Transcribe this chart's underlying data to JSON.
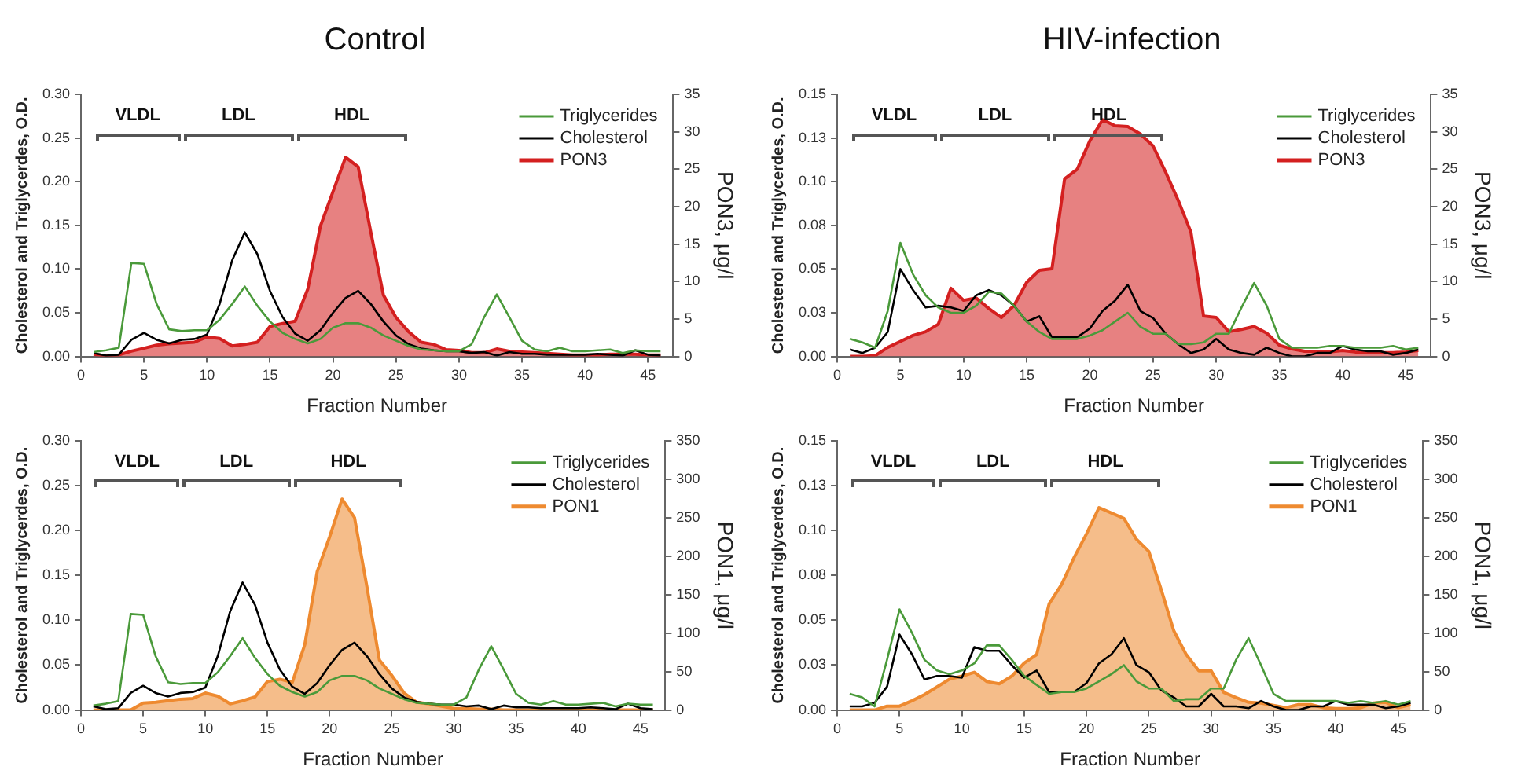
{
  "chart_data": [
    {
      "type": "line",
      "title": "Control",
      "xlabel": "Fraction Number",
      "ylabel": "Cholesterol and Triglycerdes, O.D.",
      "y2label": "PON3, μg/l",
      "legend": "top right",
      "grid": false,
      "marker": "none",
      "line_style": "solid",
      "x": [
        1,
        2,
        3,
        4,
        5,
        6,
        7,
        8,
        9,
        10,
        11,
        12,
        13,
        14,
        15,
        16,
        17,
        18,
        19,
        20,
        21,
        22,
        23,
        24,
        25,
        26,
        27,
        28,
        29,
        30,
        31,
        32,
        33,
        34,
        35,
        36,
        37,
        38,
        39,
        40,
        41,
        42,
        43,
        44,
        45,
        46
      ],
      "xlim": [
        0,
        47
      ],
      "xticks": [
        0,
        5,
        10,
        15,
        20,
        25,
        30,
        35,
        40,
        45
      ],
      "ylim": [
        0,
        0.3
      ],
      "yticks": [
        {
          "value": 0,
          "label": "0.00"
        },
        {
          "value": 0.05,
          "label": "0.05"
        },
        {
          "value": 0.1,
          "label": "0.10"
        },
        {
          "value": 0.15,
          "label": "0.15"
        },
        {
          "value": 0.2,
          "label": "0.20"
        },
        {
          "value": 0.25,
          "label": "0.25"
        },
        {
          "value": 0.3,
          "label": "0.30"
        }
      ],
      "y2lim": [
        0,
        35
      ],
      "y2ticks": [
        0,
        5,
        10,
        15,
        20,
        25,
        30,
        35
      ],
      "annotations": [
        "VLDL",
        "LDL",
        "HDL"
      ],
      "series": [
        {
          "name": "Triglycerides",
          "color": "#4a9a3a",
          "type": "line",
          "values": [
            0.005,
            0.007,
            0.01,
            0.107,
            0.106,
            0.06,
            0.031,
            0.029,
            0.03,
            0.03,
            0.042,
            0.06,
            0.08,
            0.058,
            0.04,
            0.027,
            0.02,
            0.015,
            0.02,
            0.033,
            0.038,
            0.038,
            0.033,
            0.024,
            0.018,
            0.012,
            0.008,
            0.007,
            0.006,
            0.006,
            0.014,
            0.045,
            0.071,
            0.045,
            0.018,
            0.008,
            0.006,
            0.01,
            0.006,
            0.006,
            0.007,
            0.008,
            0.004,
            0.007,
            0.006,
            0.006
          ]
        },
        {
          "name": "Cholesterol",
          "color": "#000000",
          "type": "line",
          "values": [
            0.004,
            0.001,
            0.002,
            0.019,
            0.027,
            0.019,
            0.015,
            0.019,
            0.02,
            0.025,
            0.06,
            0.11,
            0.142,
            0.117,
            0.075,
            0.045,
            0.026,
            0.018,
            0.03,
            0.05,
            0.067,
            0.075,
            0.06,
            0.04,
            0.024,
            0.014,
            0.009,
            0.007,
            0.006,
            0.006,
            0.004,
            0.005,
            0.001,
            0.005,
            0.003,
            0.003,
            0.002,
            0.002,
            0.002,
            0.002,
            0.003,
            0.002,
            0.001,
            0.007,
            0.002,
            0.001
          ]
        },
        {
          "name": "PON3",
          "color": "#d42020",
          "type": "area",
          "axis": "y2",
          "values": [
            0.3,
            0.1,
            0.2,
            0.7,
            1.1,
            1.5,
            1.7,
            1.8,
            1.9,
            2.6,
            2.4,
            1.4,
            1.6,
            1.9,
            4,
            4.4,
            4.7,
            9,
            17.4,
            22,
            26.6,
            25.3,
            16.6,
            8.2,
            5.2,
            3.3,
            1.9,
            1.6,
            0.9,
            0.8,
            0.5,
            0.5,
            1,
            0.7,
            0.6,
            0.5,
            0.4,
            0.3,
            0.2,
            0.2,
            0.2,
            0.3,
            0.3,
            0.3,
            0.2,
            0.2
          ]
        }
      ]
    },
    {
      "type": "line",
      "title": "HIV-infection",
      "xlabel": "Fraction Number",
      "ylabel": "Cholesterol and Triglycerdes, O.D.",
      "y2label": "PON3, μg/l",
      "legend": "top right",
      "grid": false,
      "marker": "none",
      "line_style": "solid",
      "x": [
        1,
        2,
        3,
        4,
        5,
        6,
        7,
        8,
        9,
        10,
        11,
        12,
        13,
        14,
        15,
        16,
        17,
        18,
        19,
        20,
        21,
        22,
        23,
        24,
        25,
        26,
        27,
        28,
        29,
        30,
        31,
        32,
        33,
        34,
        35,
        36,
        37,
        38,
        39,
        40,
        41,
        42,
        43,
        44,
        45,
        46
      ],
      "xlim": [
        0,
        47
      ],
      "xticks": [
        0,
        5,
        10,
        15,
        20,
        25,
        30,
        35,
        40,
        45
      ],
      "ylim": [
        0,
        0.15
      ],
      "yticks": [
        {
          "value": 0,
          "label": "0.00"
        },
        {
          "value": 0.025,
          "label": "0.03"
        },
        {
          "value": 0.05,
          "label": "0.05"
        },
        {
          "value": 0.075,
          "label": "0.08"
        },
        {
          "value": 0.1,
          "label": "0.10"
        },
        {
          "value": 0.125,
          "label": "0.13"
        },
        {
          "value": 0.15,
          "label": "0.15"
        }
      ],
      "y2lim": [
        0,
        35
      ],
      "y2ticks": [
        0,
        5,
        10,
        15,
        20,
        25,
        30,
        35
      ],
      "annotations": [
        "VLDL",
        "LDL",
        "HDL"
      ],
      "series": [
        {
          "name": "Triglycerides",
          "color": "#4a9a3a",
          "type": "line",
          "values": [
            0.01,
            0.008,
            0.005,
            0.026,
            0.065,
            0.047,
            0.035,
            0.028,
            0.025,
            0.025,
            0.029,
            0.037,
            0.036,
            0.029,
            0.02,
            0.014,
            0.01,
            0.01,
            0.01,
            0.012,
            0.015,
            0.02,
            0.025,
            0.017,
            0.013,
            0.013,
            0.007,
            0.007,
            0.008,
            0.013,
            0.013,
            0.028,
            0.042,
            0.029,
            0.01,
            0.005,
            0.005,
            0.005,
            0.006,
            0.006,
            0.005,
            0.005,
            0.005,
            0.006,
            0.004,
            0.005
          ]
        },
        {
          "name": "Cholesterol",
          "color": "#000000",
          "type": "line",
          "values": [
            0.004,
            0.002,
            0.005,
            0.014,
            0.05,
            0.038,
            0.028,
            0.029,
            0.028,
            0.026,
            0.035,
            0.038,
            0.035,
            0.029,
            0.02,
            0.023,
            0.011,
            0.011,
            0.011,
            0.016,
            0.026,
            0.032,
            0.041,
            0.026,
            0.022,
            0.013,
            0.007,
            0.002,
            0.004,
            0.01,
            0.004,
            0.002,
            0.001,
            0.005,
            0.002,
            0,
            0,
            0.002,
            0.002,
            0.006,
            0.004,
            0.003,
            0.003,
            0.001,
            0.002,
            0.004
          ]
        },
        {
          "name": "PON3",
          "color": "#d42020",
          "type": "area",
          "axis": "y2",
          "values": [
            0,
            0,
            0.1,
            1.2,
            2,
            2.8,
            3.3,
            4.3,
            9.1,
            7.5,
            7.8,
            6.4,
            5.2,
            6.8,
            9.9,
            11.5,
            11.7,
            23.7,
            25,
            28.8,
            31.6,
            30.8,
            30.7,
            29.7,
            28.1,
            24.6,
            20.8,
            16.6,
            5.4,
            5.2,
            3.3,
            3.6,
            4,
            3.1,
            1.5,
            1,
            0.7,
            0.7,
            0.6,
            0.8,
            0.6,
            0.5,
            0.5,
            0.5,
            0.6,
            0.8
          ]
        }
      ]
    },
    {
      "type": "line",
      "xlabel": "Fraction Number",
      "ylabel": "Cholesterol and Triglycerdes, O.D.",
      "y2label": "PON1, μg/l",
      "legend": "top right",
      "grid": false,
      "marker": "none",
      "line_style": "solid",
      "x": [
        1,
        2,
        3,
        4,
        5,
        6,
        7,
        8,
        9,
        10,
        11,
        12,
        13,
        14,
        15,
        16,
        17,
        18,
        19,
        20,
        21,
        22,
        23,
        24,
        25,
        26,
        27,
        28,
        29,
        30,
        31,
        32,
        33,
        34,
        35,
        36,
        37,
        38,
        39,
        40,
        41,
        42,
        43,
        44,
        45,
        46
      ],
      "xlim": [
        0,
        47
      ],
      "xticks": [
        0,
        5,
        10,
        15,
        20,
        25,
        30,
        35,
        40,
        45
      ],
      "ylim": [
        0,
        0.3
      ],
      "yticks": [
        {
          "value": 0,
          "label": "0.00"
        },
        {
          "value": 0.05,
          "label": "0.05"
        },
        {
          "value": 0.1,
          "label": "0.10"
        },
        {
          "value": 0.15,
          "label": "0.15"
        },
        {
          "value": 0.2,
          "label": "0.20"
        },
        {
          "value": 0.25,
          "label": "0.25"
        },
        {
          "value": 0.3,
          "label": "0.30"
        }
      ],
      "y2lim": [
        0,
        350
      ],
      "y2ticks": [
        0,
        50,
        100,
        150,
        200,
        250,
        300,
        350
      ],
      "annotations": [
        "VLDL",
        "LDL",
        "HDL"
      ],
      "series": [
        {
          "name": "Triglycerides",
          "color": "#4a9a3a",
          "type": "line",
          "values": [
            0.005,
            0.007,
            0.01,
            0.107,
            0.106,
            0.06,
            0.031,
            0.029,
            0.03,
            0.03,
            0.042,
            0.06,
            0.08,
            0.058,
            0.04,
            0.027,
            0.02,
            0.015,
            0.02,
            0.033,
            0.038,
            0.038,
            0.033,
            0.024,
            0.018,
            0.012,
            0.008,
            0.007,
            0.006,
            0.006,
            0.014,
            0.045,
            0.071,
            0.045,
            0.018,
            0.008,
            0.006,
            0.01,
            0.006,
            0.006,
            0.007,
            0.008,
            0.004,
            0.007,
            0.006,
            0.006
          ]
        },
        {
          "name": "Cholesterol",
          "color": "#000000",
          "type": "line",
          "values": [
            0.004,
            0.001,
            0.002,
            0.019,
            0.027,
            0.019,
            0.015,
            0.019,
            0.02,
            0.025,
            0.06,
            0.11,
            0.142,
            0.117,
            0.075,
            0.045,
            0.026,
            0.018,
            0.03,
            0.05,
            0.067,
            0.075,
            0.06,
            0.04,
            0.024,
            0.014,
            0.009,
            0.007,
            0.006,
            0.006,
            0.004,
            0.005,
            0.001,
            0.005,
            0.003,
            0.003,
            0.002,
            0.002,
            0.002,
            0.002,
            0.003,
            0.002,
            0.001,
            0.007,
            0.002,
            0.001
          ]
        },
        {
          "name": "PON1",
          "color": "#ee8a30",
          "type": "area",
          "axis": "y2",
          "values": [
            0,
            0,
            0,
            0,
            9,
            10,
            12,
            14,
            15,
            22,
            18,
            8,
            12,
            17,
            37,
            40,
            36,
            85,
            180,
            225,
            274,
            250,
            160,
            65,
            45,
            22,
            10,
            8,
            5,
            2,
            2,
            1,
            1,
            0,
            0,
            0,
            0,
            0,
            0,
            0,
            0,
            0,
            0,
            0,
            0,
            0
          ]
        }
      ]
    },
    {
      "type": "line",
      "xlabel": "Fraction Number",
      "ylabel": "Cholesterol and Triglycerdes, O.D.",
      "y2label": "PON1, μg/l",
      "legend": "top right",
      "grid": false,
      "marker": "none",
      "line_style": "solid",
      "x": [
        1,
        2,
        3,
        4,
        5,
        6,
        7,
        8,
        9,
        10,
        11,
        12,
        13,
        14,
        15,
        16,
        17,
        18,
        19,
        20,
        21,
        22,
        23,
        24,
        25,
        26,
        27,
        28,
        29,
        30,
        31,
        32,
        33,
        34,
        35,
        36,
        37,
        38,
        39,
        40,
        41,
        42,
        43,
        44,
        45,
        46
      ],
      "xlim": [
        0,
        47
      ],
      "xticks": [
        0,
        5,
        10,
        15,
        20,
        25,
        30,
        35,
        40,
        45
      ],
      "ylim": [
        0,
        0.15
      ],
      "yticks": [
        {
          "value": 0,
          "label": "0.00"
        },
        {
          "value": 0.025,
          "label": "0.03"
        },
        {
          "value": 0.05,
          "label": "0.05"
        },
        {
          "value": 0.075,
          "label": "0.08"
        },
        {
          "value": 0.1,
          "label": "0.10"
        },
        {
          "value": 0.125,
          "label": "0.13"
        },
        {
          "value": 0.15,
          "label": "0.15"
        }
      ],
      "y2lim": [
        0,
        350
      ],
      "y2ticks": [
        0,
        50,
        100,
        150,
        200,
        250,
        300,
        350
      ],
      "annotations": [
        "VLDL",
        "LDL",
        "HDL"
      ],
      "series": [
        {
          "name": "Triglycerides",
          "color": "#4a9a3a",
          "type": "line",
          "values": [
            0.009,
            0.007,
            0.002,
            0.028,
            0.056,
            0.043,
            0.028,
            0.022,
            0.02,
            0.022,
            0.026,
            0.036,
            0.036,
            0.028,
            0.019,
            0.014,
            0.009,
            0.01,
            0.01,
            0.012,
            0.016,
            0.02,
            0.025,
            0.016,
            0.012,
            0.012,
            0.005,
            0.006,
            0.006,
            0.012,
            0.012,
            0.028,
            0.04,
            0.025,
            0.009,
            0.005,
            0.005,
            0.005,
            0.005,
            0.005,
            0.004,
            0.005,
            0.004,
            0.005,
            0.003,
            0.005
          ]
        },
        {
          "name": "Cholesterol",
          "color": "#000000",
          "type": "line",
          "values": [
            0.002,
            0.002,
            0.004,
            0.013,
            0.042,
            0.031,
            0.017,
            0.019,
            0.019,
            0.018,
            0.035,
            0.033,
            0.033,
            0.025,
            0.018,
            0.022,
            0.01,
            0.01,
            0.01,
            0.015,
            0.026,
            0.031,
            0.04,
            0.025,
            0.021,
            0.011,
            0.007,
            0.002,
            0.002,
            0.009,
            0.002,
            0.002,
            0.001,
            0.005,
            0.002,
            0,
            0,
            0.002,
            0.002,
            0.005,
            0.003,
            0.003,
            0.003,
            0.001,
            0.002,
            0.004
          ]
        },
        {
          "name": "PON1",
          "color": "#ee8a30",
          "type": "area",
          "axis": "y2",
          "values": [
            0,
            0,
            0,
            5,
            5,
            12,
            20,
            30,
            40,
            44,
            49,
            37,
            34,
            44,
            61,
            72,
            138,
            163,
            198,
            229,
            263,
            256,
            249,
            222,
            206,
            156,
            103,
            72,
            51,
            51,
            23,
            16,
            10,
            9,
            6,
            3,
            7,
            7,
            3,
            2,
            2,
            3,
            9,
            10,
            3,
            7
          ]
        }
      ]
    }
  ]
}
